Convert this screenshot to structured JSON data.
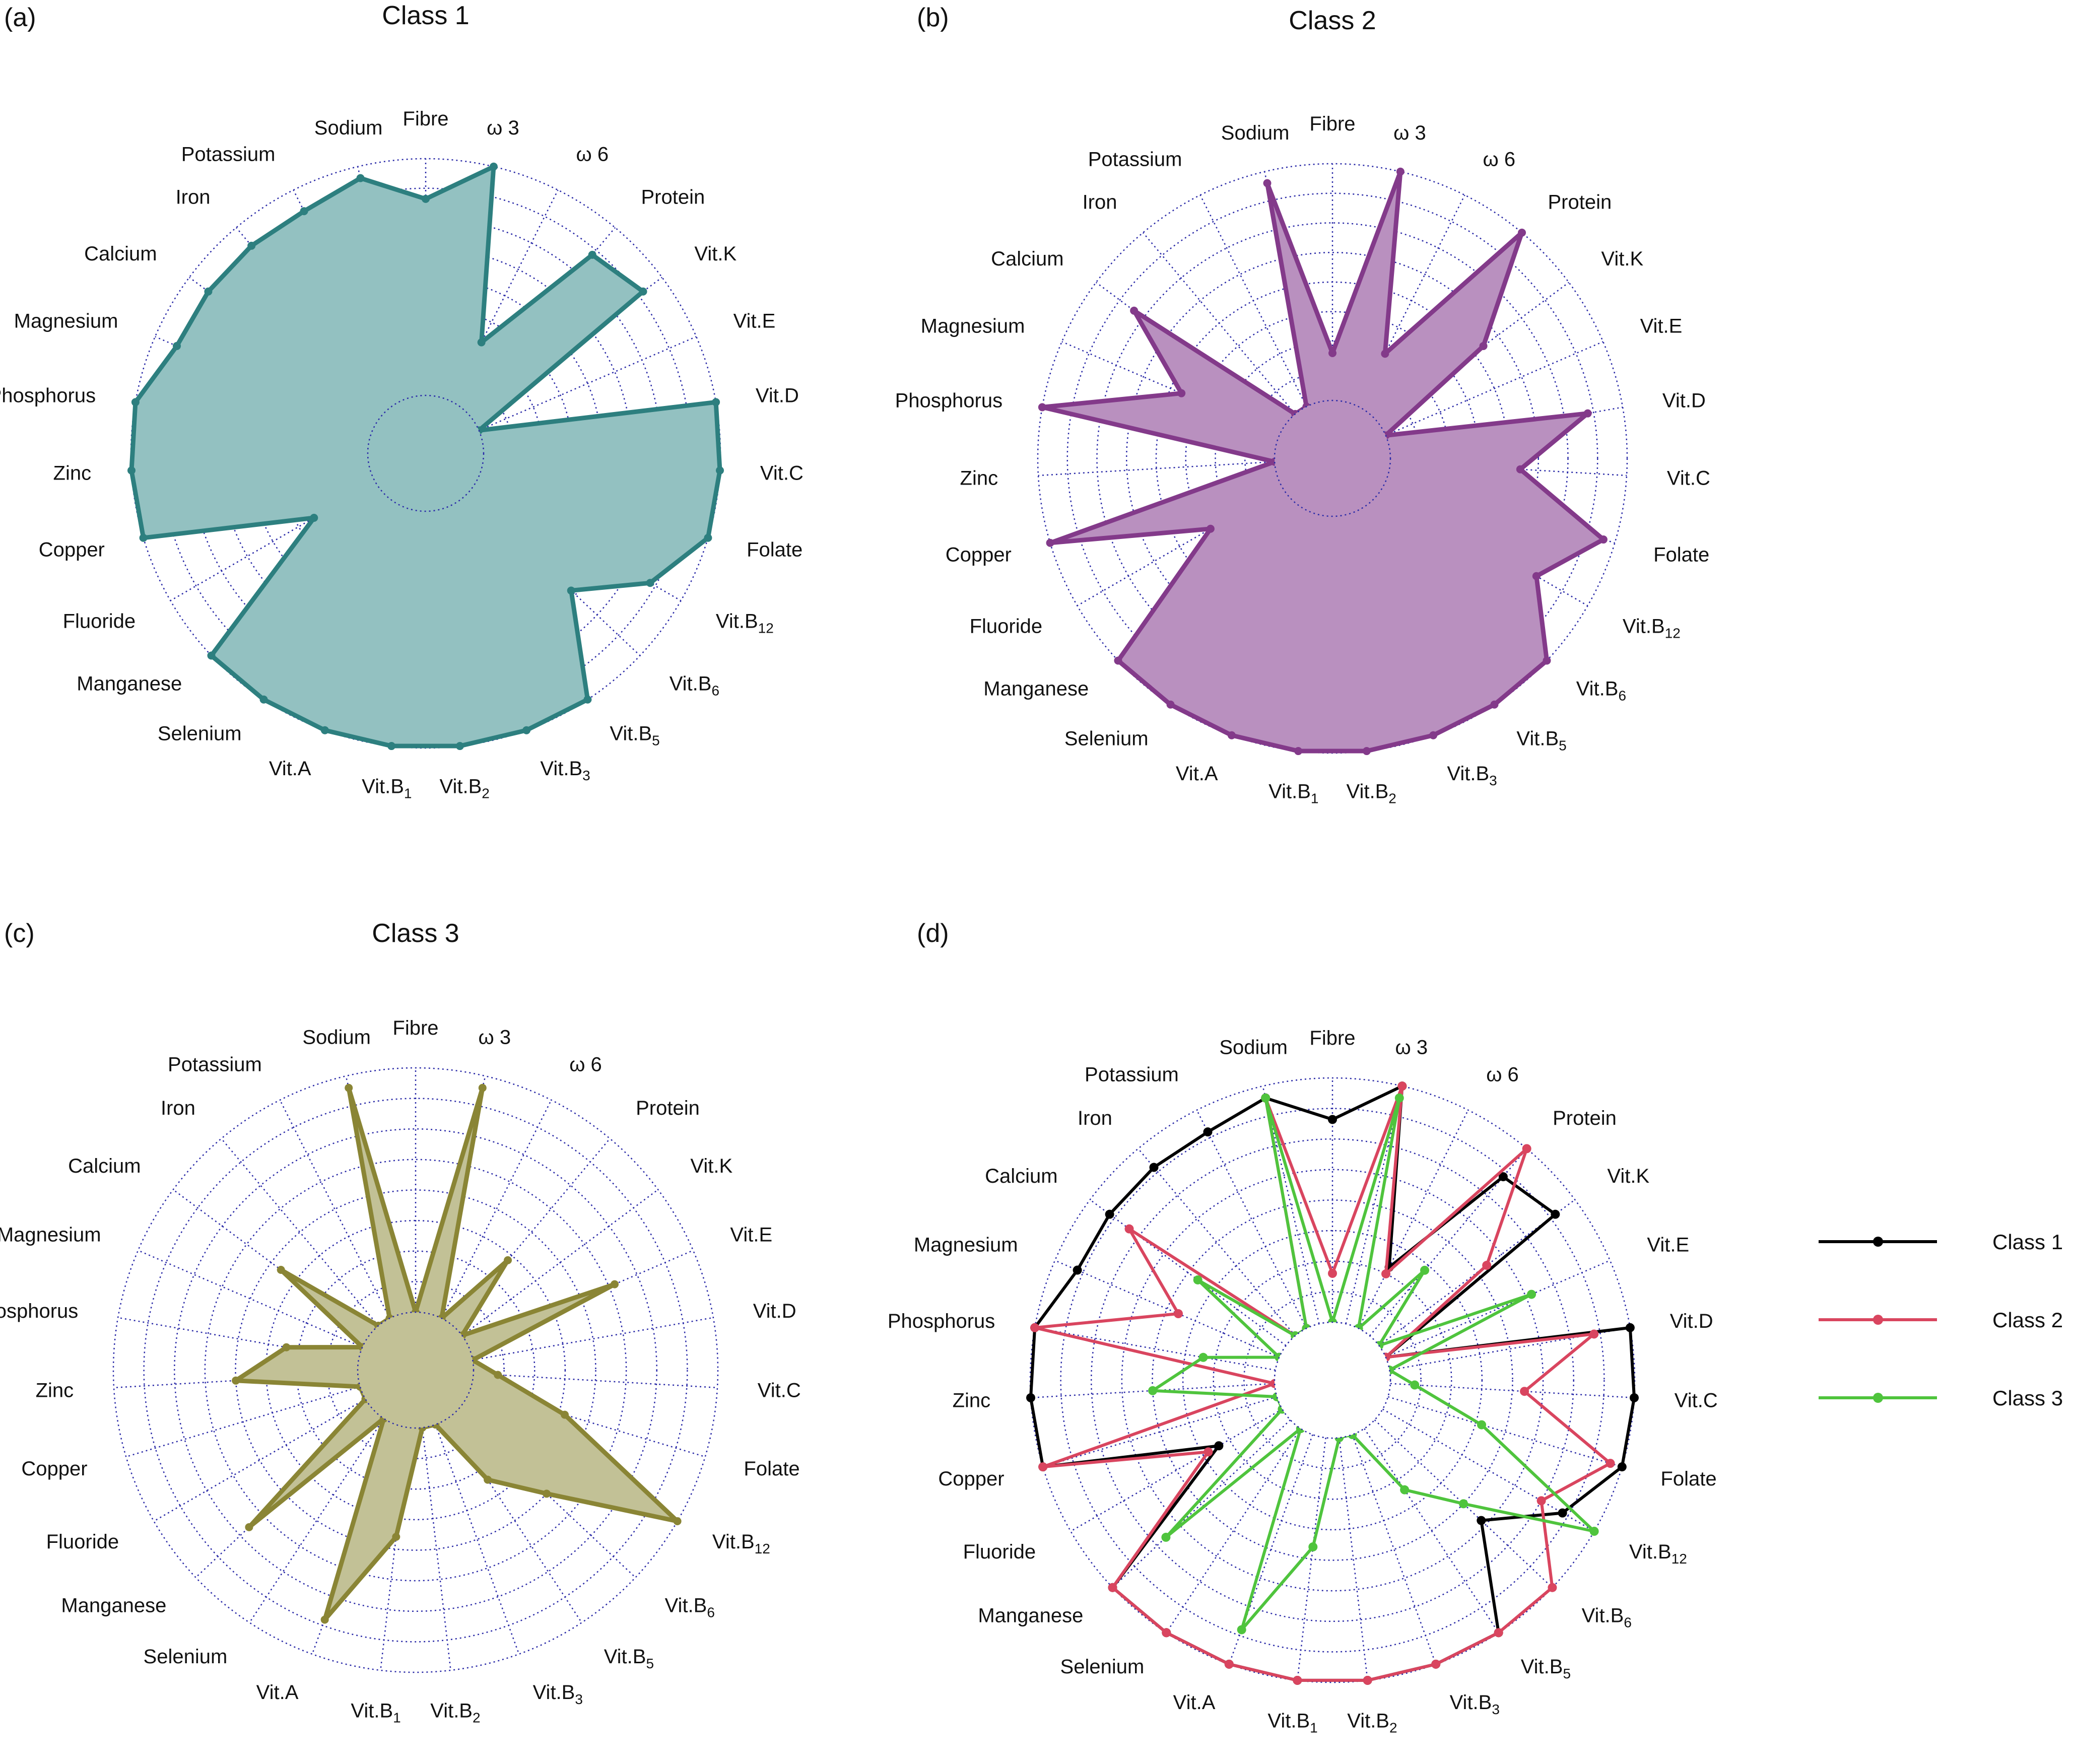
{
  "figure": {
    "panels": [
      {
        "tag": "(a)",
        "title": "Class 1"
      },
      {
        "tag": "(b)",
        "title": "Class 2"
      },
      {
        "tag": "(c)",
        "title": "Class 3"
      },
      {
        "tag": "(d)",
        "title": ""
      }
    ]
  },
  "chart_data": [
    {
      "type": "radar",
      "panel": "(a)",
      "title": "Class 1",
      "axes": [
        "Fibre",
        "ω 3",
        "ω 6",
        "Protein",
        "Vit.K",
        "Vit.E",
        "Vit.D",
        "Vit.C",
        "Folate",
        "Vit.B12",
        "Vit.B6",
        "Vit.B5",
        "Vit.B3",
        "Vit.B2",
        "Vit.B1",
        "Vit.A",
        "Selenium",
        "Manganese",
        "Fluoride",
        "Copper",
        "Zinc",
        "Phosphorus",
        "Magnesium",
        "Calcium",
        "Iron",
        "Potassium",
        "Sodium"
      ],
      "rlim": [
        0,
        1
      ],
      "rings": 8,
      "series": [
        {
          "name": "Class 1",
          "color": "#2d7f7f",
          "fill": "#93c1c1",
          "values": [
            0.83,
            1.0,
            0.28,
            0.85,
            0.9,
            0.0,
            1.0,
            1.0,
            1.0,
            0.85,
            0.6,
            1.0,
            1.0,
            1.0,
            1.0,
            1.0,
            1.0,
            1.0,
            0.3,
            1.0,
            1.0,
            1.0,
            0.9,
            0.9,
            0.9,
            0.9,
            0.95
          ]
        }
      ]
    },
    {
      "type": "radar",
      "panel": "(b)",
      "title": "Class 2",
      "axes": [
        "Fibre",
        "ω 3",
        "ω 6",
        "Protein",
        "Vit.K",
        "Vit.E",
        "Vit.D",
        "Vit.C",
        "Folate",
        "Vit.B12",
        "Vit.B6",
        "Vit.B5",
        "Vit.B3",
        "Vit.B2",
        "Vit.B1",
        "Vit.A",
        "Selenium",
        "Manganese",
        "Fluoride",
        "Copper",
        "Zinc",
        "Phosphorus",
        "Magnesium",
        "Calcium",
        "Iron",
        "Potassium",
        "Sodium"
      ],
      "rlim": [
        0,
        1
      ],
      "rings": 8,
      "series": [
        {
          "name": "Class 2",
          "color": "#833a8a",
          "fill": "#b990bf",
          "values": [
            0.2,
            1.0,
            0.25,
            1.0,
            0.55,
            0.0,
            0.85,
            0.55,
            0.95,
            0.75,
            1.0,
            1.0,
            1.0,
            1.0,
            1.0,
            1.0,
            1.0,
            1.0,
            0.35,
            1.0,
            0.0,
            1.0,
            0.45,
            0.8,
            0.0,
            0.0,
            0.95
          ]
        }
      ]
    },
    {
      "type": "radar",
      "panel": "(c)",
      "title": "Class 3",
      "axes": [
        "Fibre",
        "ω 3",
        "ω 6",
        "Protein",
        "Vit.K",
        "Vit.E",
        "Vit.D",
        "Vit.C",
        "Folate",
        "Vit.B12",
        "Vit.B6",
        "Vit.B5",
        "Vit.B3",
        "Vit.B2",
        "Vit.B1",
        "Vit.A",
        "Selenium",
        "Manganese",
        "Fluoride",
        "Copper",
        "Zinc",
        "Phosphorus",
        "Magnesium",
        "Calcium",
        "Iron",
        "Potassium",
        "Sodium"
      ],
      "rlim": [
        0,
        1
      ],
      "rings": 8,
      "series": [
        {
          "name": "Class 3",
          "color": "#8a8535",
          "fill": "#c2c196",
          "values": [
            0.0,
            0.95,
            0.0,
            0.35,
            0.0,
            0.65,
            0.0,
            0.1,
            0.4,
            1.0,
            0.5,
            0.3,
            0.0,
            0.0,
            0.45,
            0.85,
            0.0,
            0.7,
            0.0,
            0.0,
            0.5,
            0.3,
            0.0,
            0.45,
            0.0,
            0.0,
            0.95
          ]
        }
      ]
    },
    {
      "type": "radar",
      "panel": "(d)",
      "title": "",
      "axes": [
        "Fibre",
        "ω 3",
        "ω 6",
        "Protein",
        "Vit.K",
        "Vit.E",
        "Vit.D",
        "Vit.C",
        "Folate",
        "Vit.B12",
        "Vit.B6",
        "Vit.B5",
        "Vit.B3",
        "Vit.B2",
        "Vit.B1",
        "Vit.A",
        "Selenium",
        "Manganese",
        "Fluoride",
        "Copper",
        "Zinc",
        "Phosphorus",
        "Magnesium",
        "Calcium",
        "Iron",
        "Potassium",
        "Sodium"
      ],
      "rlim": [
        0,
        1
      ],
      "rings": 8,
      "legend": "right",
      "series": [
        {
          "name": "Class 1",
          "color": "#000000",
          "values": [
            0.83,
            1.0,
            0.28,
            0.85,
            0.9,
            0.0,
            1.0,
            1.0,
            1.0,
            0.85,
            0.6,
            1.0,
            1.0,
            1.0,
            1.0,
            1.0,
            1.0,
            1.0,
            0.3,
            1.0,
            1.0,
            1.0,
            0.9,
            0.9,
            0.9,
            0.9,
            0.95
          ]
        },
        {
          "name": "Class 2",
          "color": "#d9455f",
          "values": [
            0.2,
            1.0,
            0.25,
            1.0,
            0.55,
            0.0,
            0.85,
            0.55,
            0.95,
            0.75,
            1.0,
            1.0,
            1.0,
            1.0,
            1.0,
            1.0,
            1.0,
            1.0,
            0.35,
            1.0,
            0.0,
            1.0,
            0.45,
            0.8,
            0.0,
            0.0,
            0.95
          ]
        },
        {
          "name": "Class 3",
          "color": "#4fc43d",
          "values": [
            0.0,
            0.95,
            0.0,
            0.35,
            0.0,
            0.65,
            0.0,
            0.1,
            0.4,
            1.0,
            0.5,
            0.3,
            0.0,
            0.0,
            0.45,
            0.85,
            0.0,
            0.7,
            0.0,
            0.0,
            0.5,
            0.3,
            0.0,
            0.45,
            0.0,
            0.0,
            0.95
          ]
        }
      ]
    }
  ]
}
